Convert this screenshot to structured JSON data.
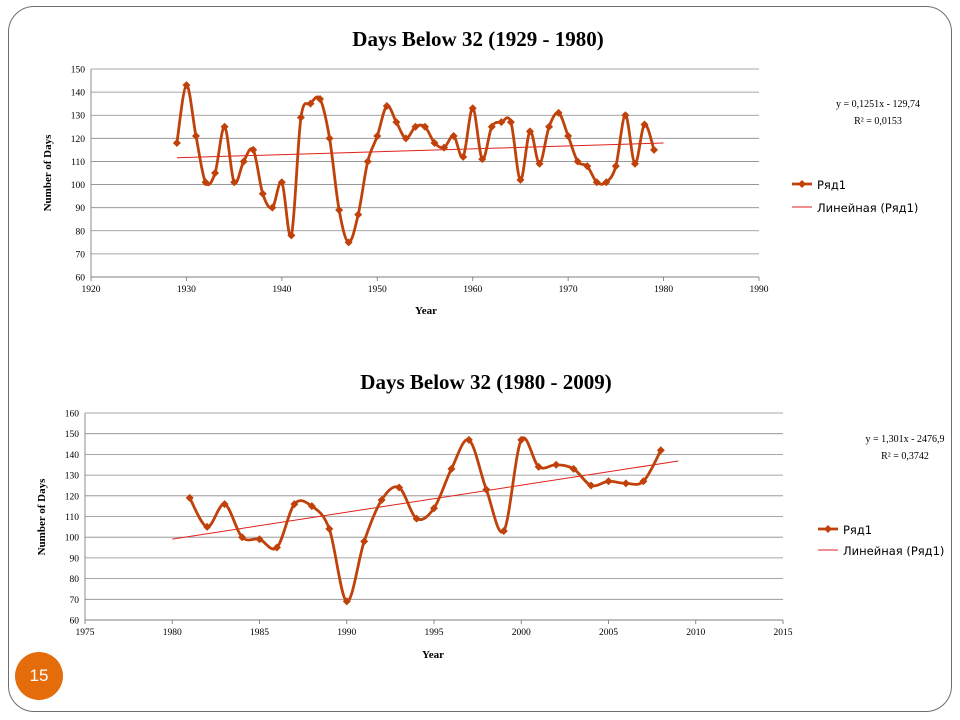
{
  "slide": {
    "page_number": "15",
    "badge_color": "#e46c0a"
  },
  "colors": {
    "series": "#c0420a",
    "trend": "#e0201c",
    "grid": "#8a8a8a"
  },
  "chart_data": [
    {
      "type": "line",
      "title": "Days Below 32 (1929 - 1980)",
      "xlabel": "Year",
      "ylabel": "Number of Days",
      "xlim": [
        1920,
        1990
      ],
      "ylim": [
        60,
        150
      ],
      "x_ticks": [
        1920,
        1930,
        1940,
        1950,
        1960,
        1970,
        1980,
        1990
      ],
      "y_ticks": [
        60,
        70,
        80,
        90,
        100,
        110,
        120,
        130,
        140,
        150
      ],
      "grid": true,
      "legend_position": "right",
      "series": [
        {
          "name": "Ряд1",
          "marker": "diamond",
          "smooth": true,
          "x": [
            1929,
            1930,
            1931,
            1932,
            1933,
            1934,
            1935,
            1936,
            1937,
            1938,
            1939,
            1940,
            1941,
            1942,
            1943,
            1944,
            1945,
            1946,
            1947,
            1948,
            1949,
            1950,
            1951,
            1952,
            1953,
            1954,
            1955,
            1956,
            1957,
            1958,
            1959,
            1960,
            1961,
            1962,
            1963,
            1964,
            1965,
            1966,
            1967,
            1968,
            1969,
            1970,
            1971,
            1972,
            1973,
            1974,
            1975,
            1976,
            1977,
            1978,
            1979
          ],
          "y": [
            118,
            143,
            121,
            101,
            105,
            125,
            101,
            110,
            115,
            96,
            90,
            101,
            78,
            129,
            135,
            137,
            120,
            89,
            75,
            87,
            110,
            121,
            134,
            127,
            120,
            125,
            125,
            118,
            116,
            121,
            112,
            133,
            111,
            125,
            127,
            127,
            102,
            123,
            109,
            125,
            131,
            121,
            110,
            108,
            101,
            101,
            108,
            130,
            109,
            126,
            115
          ]
        }
      ],
      "trendline": {
        "name": "Линейная (Ряд1)",
        "slope": 0.1251,
        "intercept": -129.74,
        "x_range": [
          1929,
          1980
        ],
        "equation": "y = 0,1251x - 129,74",
        "r2": "R² = 0,0153"
      }
    },
    {
      "type": "line",
      "title": "Days Below 32 (1980 - 2009)",
      "xlabel": "Year",
      "ylabel": "Number of Days",
      "xlim": [
        1975,
        2015
      ],
      "ylim": [
        60,
        160
      ],
      "x_ticks": [
        1975,
        1980,
        1985,
        1990,
        1995,
        2000,
        2005,
        2010,
        2015
      ],
      "y_ticks": [
        60,
        70,
        80,
        90,
        100,
        110,
        120,
        130,
        140,
        150,
        160
      ],
      "grid": true,
      "legend_position": "right",
      "series": [
        {
          "name": "Ряд1",
          "marker": "diamond",
          "smooth": true,
          "x": [
            1981,
            1982,
            1983,
            1984,
            1985,
            1986,
            1987,
            1988,
            1989,
            1990,
            1991,
            1992,
            1993,
            1994,
            1995,
            1996,
            1997,
            1998,
            1999,
            2000,
            2001,
            2002,
            2003,
            2004,
            2005,
            2006,
            2007,
            2008
          ],
          "y": [
            119,
            105,
            116,
            100,
            99,
            95,
            116,
            115,
            104,
            69,
            98,
            118,
            124,
            109,
            114,
            133,
            147,
            123,
            103,
            147,
            134,
            135,
            133,
            125,
            127,
            126,
            127,
            142
          ]
        }
      ],
      "trendline": {
        "name": "Линейная (Ряд1)",
        "slope": 1.301,
        "intercept": -2476.9,
        "x_range": [
          1980,
          2009
        ],
        "equation": "y = 1,301x - 2476,9",
        "r2": "R² = 0,3742"
      }
    }
  ]
}
